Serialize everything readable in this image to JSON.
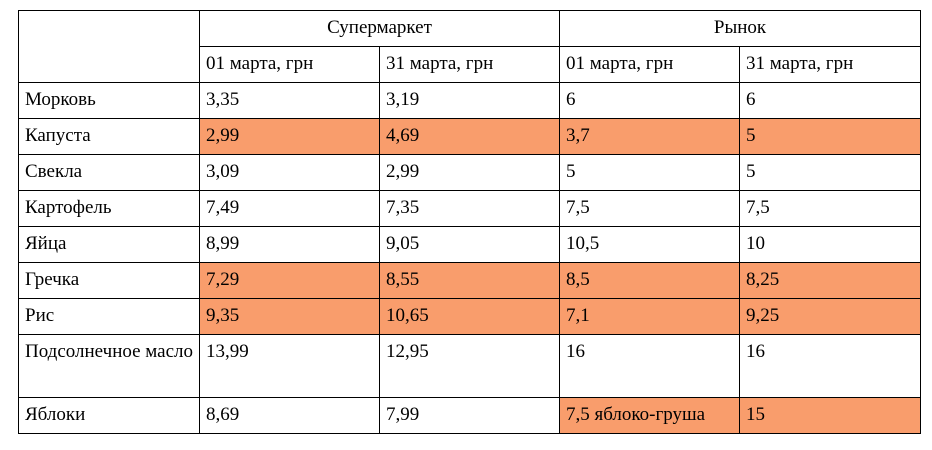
{
  "table": {
    "header": {
      "groups": [
        "Супермаркет",
        "Рынок"
      ],
      "dates": [
        "01 марта, грн",
        "31 марта, грн",
        "01 марта, грн",
        "31 марта, грн"
      ]
    },
    "rows": [
      [
        "Морковь",
        "3,35",
        "3,19",
        "6",
        "6"
      ],
      [
        "Капуста",
        "2,99",
        "4,69",
        "3,7",
        "5"
      ],
      [
        "Свекла",
        "3,09",
        "2,99",
        "5",
        "5"
      ],
      [
        "Картофель",
        "7,49",
        "7,35",
        "7,5",
        "7,5"
      ],
      [
        "Яйца",
        "8,99",
        "9,05",
        "10,5",
        "10"
      ],
      [
        "Гречка",
        "7,29",
        "8,55",
        "8,5",
        "8,25"
      ],
      [
        "Рис",
        "9,35",
        "10,65",
        "7,1",
        "9,25"
      ],
      [
        "Подсолнечное масло",
        "13,99",
        "12,95",
        "16",
        "16"
      ],
      [
        "Яблоки",
        "8,69",
        "7,99",
        "7,5 яблоко-груша",
        "15"
      ]
    ]
  }
}
